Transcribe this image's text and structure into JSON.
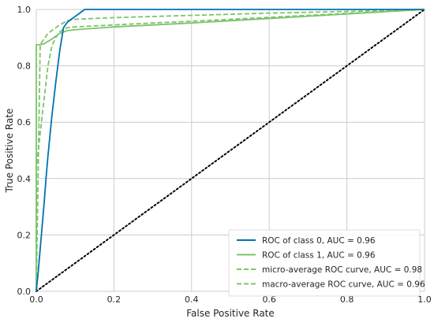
{
  "chart_data": {
    "type": "line",
    "xlabel": "False Positive Rate",
    "ylabel": "True Positive Rate",
    "xlim": [
      0.0,
      1.0
    ],
    "ylim": [
      0.0,
      1.0
    ],
    "xticks": [
      "0.0",
      "0.2",
      "0.4",
      "0.6",
      "0.8",
      "1.0"
    ],
    "yticks": [
      "0.0",
      "0.2",
      "0.4",
      "0.6",
      "0.8",
      "1.0"
    ],
    "grid": true,
    "legend_position": "lower-right",
    "series": [
      {
        "name": "ROC of class 0, AUC = 0.96",
        "color": "#0072b2",
        "dash": "solid",
        "x": [
          0.0,
          0.005,
          0.01,
          0.015,
          0.02,
          0.025,
          0.03,
          0.04,
          0.05,
          0.06,
          0.07,
          0.08,
          0.09,
          0.1,
          0.11,
          0.12,
          0.125,
          0.2,
          0.5,
          1.0
        ],
        "y": [
          0.0,
          0.07,
          0.15,
          0.23,
          0.31,
          0.4,
          0.48,
          0.62,
          0.74,
          0.85,
          0.935,
          0.955,
          0.965,
          0.975,
          0.985,
          0.995,
          1.0,
          1.0,
          1.0,
          1.0
        ]
      },
      {
        "name": "ROC of class 1, AUC = 0.96",
        "color": "#7cc46b",
        "dash": "solid",
        "x": [
          0.0,
          0.0,
          0.01,
          0.02,
          0.04,
          0.06,
          0.08,
          0.1,
          0.2,
          0.3,
          0.4,
          0.5,
          0.6,
          0.7,
          0.8,
          0.9,
          1.0
        ],
        "y": [
          0.0,
          0.875,
          0.875,
          0.878,
          0.895,
          0.915,
          0.925,
          0.928,
          0.938,
          0.945,
          0.952,
          0.96,
          0.968,
          0.976,
          0.984,
          0.992,
          1.0
        ]
      },
      {
        "name": "micro-average ROC curve, AUC = 0.98",
        "color": "#7cc46b",
        "dash": "dashed",
        "x": [
          0.0,
          0.01,
          0.03,
          0.06,
          0.08,
          0.1,
          0.15,
          0.2,
          0.3,
          0.4,
          0.5,
          0.6,
          0.7,
          0.8,
          0.9,
          1.0
        ],
        "y": [
          0.0,
          0.875,
          0.915,
          0.945,
          0.96,
          0.965,
          0.968,
          0.971,
          0.975,
          0.979,
          0.983,
          0.987,
          0.99,
          0.993,
          0.996,
          1.0
        ]
      },
      {
        "name": "macro-average ROC curve, AUC = 0.96",
        "color": "#7cc46b",
        "dash": "dashed",
        "x": [
          0.0,
          0.0,
          0.01,
          0.02,
          0.03,
          0.04,
          0.05,
          0.06,
          0.07,
          0.08,
          0.1,
          0.2,
          0.3,
          0.4,
          0.5,
          0.6,
          0.7,
          0.8,
          0.9,
          1.0
        ],
        "y": [
          0.0,
          0.44,
          0.56,
          0.68,
          0.8,
          0.87,
          0.9,
          0.92,
          0.93,
          0.935,
          0.938,
          0.945,
          0.952,
          0.958,
          0.965,
          0.972,
          0.979,
          0.986,
          0.993,
          1.0
        ]
      },
      {
        "name": "",
        "color": "#000000",
        "dash": "dotted",
        "x": [
          0.0,
          1.0
        ],
        "y": [
          0.0,
          1.0
        ]
      }
    ]
  }
}
